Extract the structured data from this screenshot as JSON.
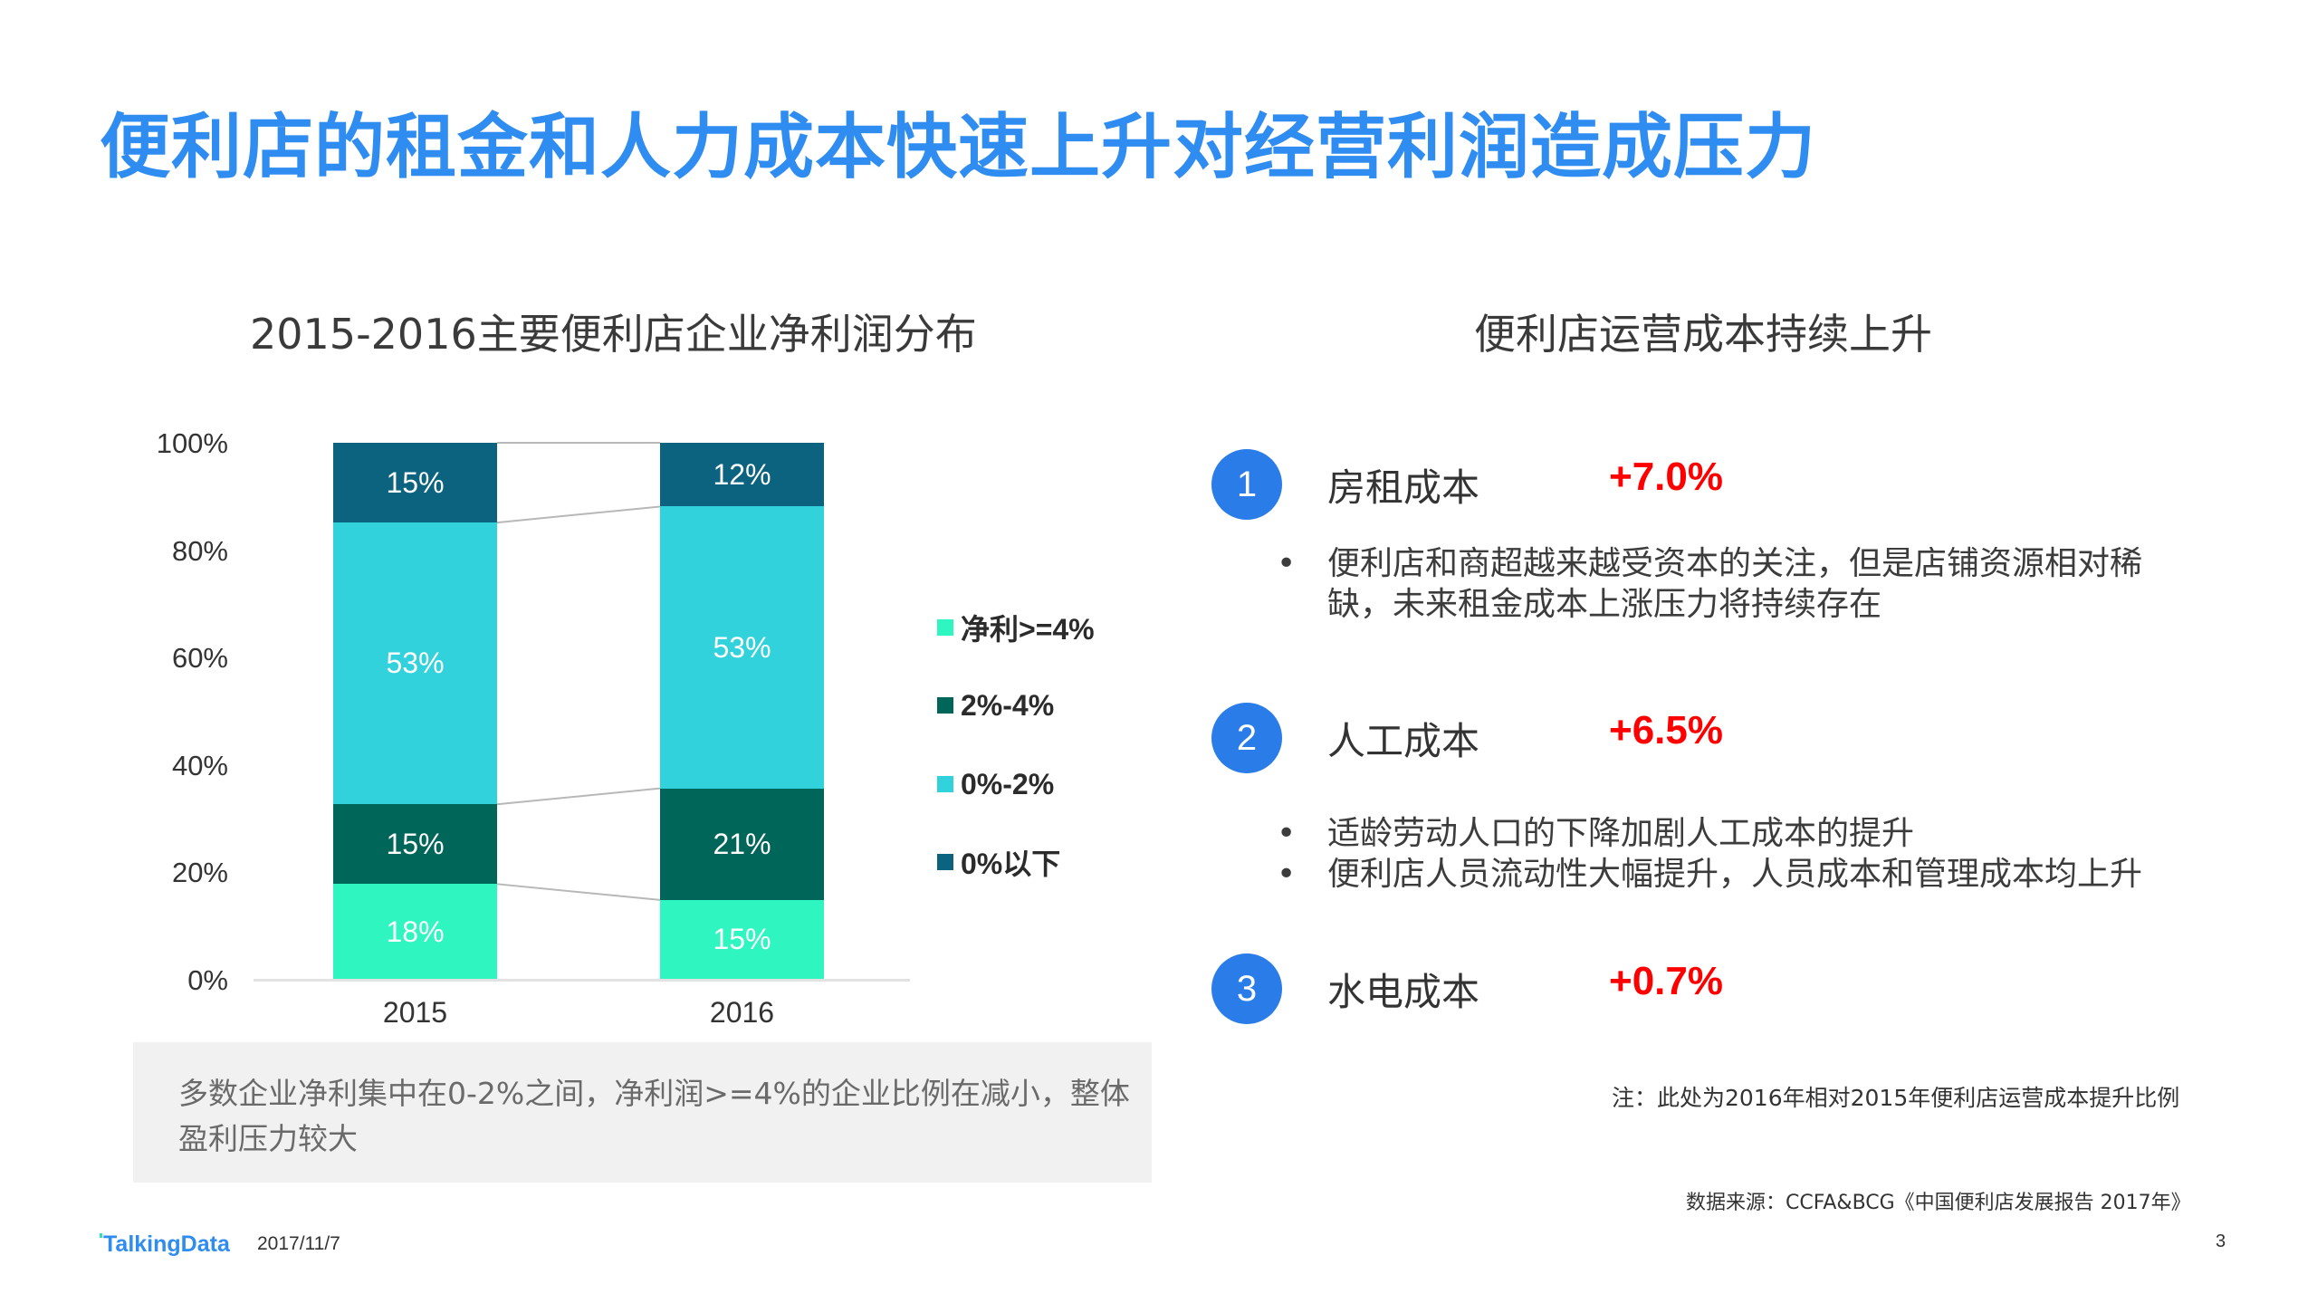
{
  "header": {
    "title": "便利店的租金和人力成本快速上升对经营利润造成压力"
  },
  "left_panel": {
    "title": "2015-2016主要便利店企业净利润分布",
    "note": "多数企业净利集中在0-2%之间，净利润>=4%的企业比例在减小，整体盈利压力较大"
  },
  "chart_data": {
    "type": "bar",
    "stacked": true,
    "percent_stacked": true,
    "title": "2015-2016主要便利店企业净利润分布",
    "categories": [
      "2015",
      "2016"
    ],
    "series": [
      {
        "name": "净利>=4%",
        "color": "#2ff5c0",
        "values": [
          18,
          15
        ]
      },
      {
        "name": "2%-4%",
        "color": "#01665a",
        "values": [
          15,
          21
        ]
      },
      {
        "name": "0%-2%",
        "color": "#32d2dc",
        "values": [
          53,
          53
        ]
      },
      {
        "name": "0%以下",
        "color": "#0c6380",
        "values": [
          15,
          12
        ]
      }
    ],
    "yticks": [
      "0%",
      "20%",
      "40%",
      "60%",
      "80%",
      "100%"
    ],
    "ylim": [
      0,
      100
    ],
    "xlabel": "",
    "ylabel": "",
    "legend_position": "right",
    "grid": false,
    "series_lines": true
  },
  "right_panel": {
    "title": "便利店运营成本持续上升",
    "items": [
      {
        "number": "1",
        "label": "房租成本",
        "value": "+7.0%",
        "bullets": [
          "便利店和商超越来越受资本的关注，但是店铺资源相对稀",
          "缺，未来租金成本上涨压力将持续存在"
        ],
        "bullet_groups": [
          2
        ]
      },
      {
        "number": "2",
        "label": "人工成本",
        "value": "+6.5%",
        "bullets": [
          "适龄劳动人口的下降加剧人工成本的提升",
          "便利店人员流动性大幅提升，人员成本和管理成本均上升"
        ]
      },
      {
        "number": "3",
        "label": "水电成本",
        "value": "+0.7%",
        "bullets": []
      }
    ],
    "footnote": "注：此处为2016年相对2015年便利店运营成本提升比例",
    "source": "数据来源：CCFA&BCG《中国便利店发展报告 2017年》"
  },
  "footer": {
    "logo": "TalkingData",
    "date": "2017/11/7",
    "page": "3"
  },
  "colors": {
    "title_blue": "#2f8cf0",
    "circle_blue": "#2a7de9",
    "value_red": "#ff0000"
  }
}
